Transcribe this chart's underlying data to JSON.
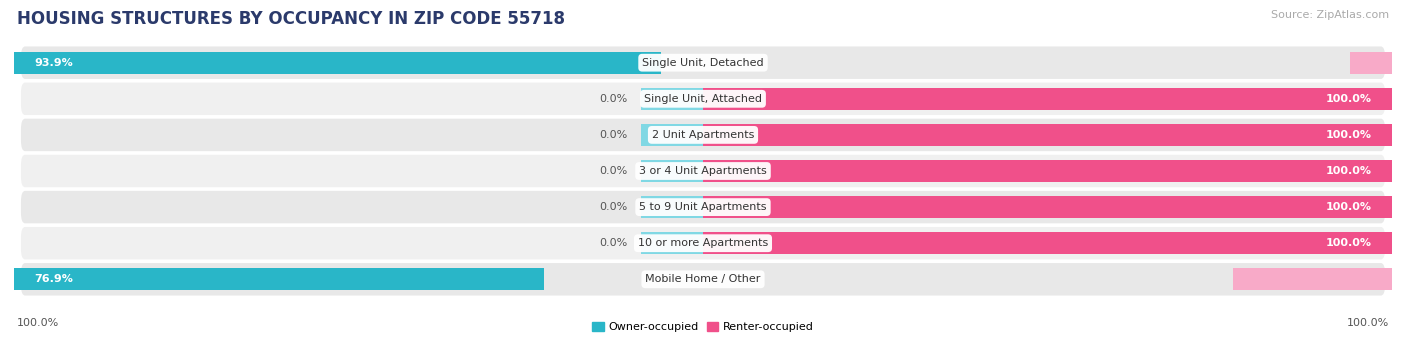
{
  "title": "HOUSING STRUCTURES BY OCCUPANCY IN ZIP CODE 55718",
  "source_text": "Source: ZipAtlas.com",
  "categories": [
    "Single Unit, Detached",
    "Single Unit, Attached",
    "2 Unit Apartments",
    "3 or 4 Unit Apartments",
    "5 to 9 Unit Apartments",
    "10 or more Apartments",
    "Mobile Home / Other"
  ],
  "owner_values": [
    93.9,
    0.0,
    0.0,
    0.0,
    0.0,
    0.0,
    76.9
  ],
  "renter_values": [
    6.1,
    100.0,
    100.0,
    100.0,
    100.0,
    100.0,
    23.1
  ],
  "owner_color": "#29b6c8",
  "renter_color": "#f0508a",
  "renter_color_light": "#f8aac8",
  "owner_color_light": "#80d8e4",
  "row_bg_even": "#e8e8e8",
  "row_bg_odd": "#f0f0f0",
  "owner_label": "Owner-occupied",
  "renter_label": "Renter-occupied",
  "axis_label_left": "100.0%",
  "axis_label_right": "100.0%",
  "background_color": "#ffffff",
  "title_fontsize": 12,
  "source_fontsize": 8,
  "label_fontsize": 8,
  "bar_label_fontsize": 8,
  "category_fontsize": 8,
  "title_color": "#2b3a6b"
}
